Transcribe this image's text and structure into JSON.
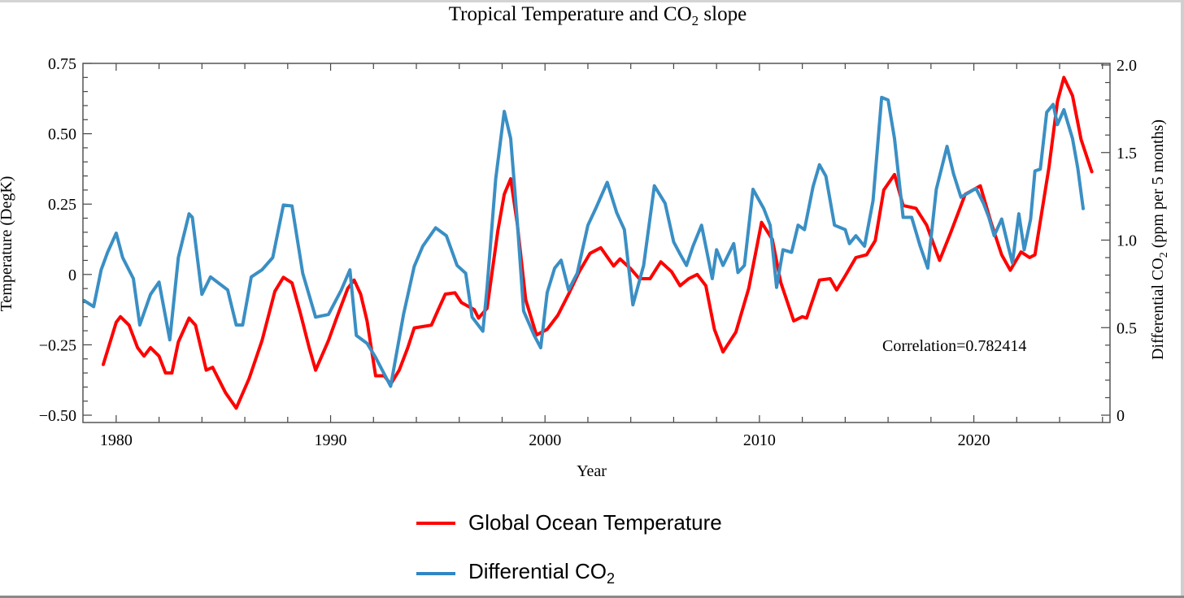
{
  "chart_data": {
    "type": "line",
    "title": {
      "main": "Tropical Temperature and CO",
      "sub": "2",
      "tail": " slope"
    },
    "xlabel": "Year",
    "ylabel_left": "Temperature (DegK)",
    "ylabel_right": {
      "main": "Differential CO",
      "sub": "2",
      "tail": " (ppm per 5 months)"
    },
    "xlim": [
      1978.45,
      2026.35
    ],
    "ylim_left": [
      -0.5,
      0.75
    ],
    "ylim_right": [
      0,
      2.0
    ],
    "x_ticks": [
      "1980",
      "1990",
      "2000",
      "2010",
      "2020"
    ],
    "y_left_ticks": [
      "0.75",
      "0.50",
      "0.25",
      "0",
      "−0.25",
      "−0.50"
    ],
    "y_left_tick_values": [
      0.75,
      0.5,
      0.25,
      0,
      -0.25,
      -0.5
    ],
    "y_right_ticks": [
      "2.0",
      "1.5",
      "1.0",
      "0.5",
      "0"
    ],
    "y_right_tick_values": [
      2.0,
      1.5,
      1.0,
      0.5,
      0
    ],
    "annotation": "Correlation=0.782414",
    "legend_position": "bottom",
    "series": [
      {
        "name": "Global Ocean Temperature",
        "axis": "left",
        "color": "#ff0000",
        "x": [
          1979.4,
          1980.0,
          1980.2,
          1980.6,
          1981.0,
          1981.3,
          1981.6,
          1982.0,
          1982.3,
          1982.6,
          1982.9,
          1983.4,
          1983.7,
          1984.2,
          1984.5,
          1985.1,
          1985.6,
          1986.2,
          1986.8,
          1987.4,
          1987.8,
          1988.2,
          1988.6,
          1989.0,
          1989.3,
          1989.9,
          1990.3,
          1990.8,
          1991.1,
          1991.4,
          1991.7,
          1992.1,
          1992.5,
          1992.8,
          1993.2,
          1993.6,
          1993.9,
          1994.7,
          1995.05,
          1995.35,
          1995.8,
          1996.1,
          1996.7,
          1996.9,
          1997.3,
          1997.8,
          1998.1,
          1998.4,
          1998.7,
          1999.1,
          1999.6,
          2000.1,
          2000.6,
          2001.1,
          2001.6,
          2002.1,
          2002.6,
          2003.2,
          2003.5,
          2004.0,
          2004.4,
          2004.9,
          2005.4,
          2005.9,
          2006.3,
          2006.7,
          2007.1,
          2007.5,
          2007.9,
          2008.3,
          2008.9,
          2009.5,
          2010.1,
          2010.6,
          2011.0,
          2011.6,
          2012.0,
          2012.2,
          2012.8,
          2013.3,
          2013.6,
          2014.0,
          2014.5,
          2015.0,
          2015.4,
          2015.8,
          2016.3,
          2016.7,
          2017.3,
          2017.8,
          2018.4,
          2018.9,
          2019.6,
          2020.3,
          2020.8,
          2021.3,
          2021.7,
          2022.2,
          2022.6,
          2022.85,
          2023.5,
          2023.9,
          2024.2,
          2024.6,
          2025.0,
          2025.5
        ],
        "y": [
          -0.32,
          -0.17,
          -0.15,
          -0.18,
          -0.26,
          -0.29,
          -0.26,
          -0.29,
          -0.35,
          -0.35,
          -0.24,
          -0.155,
          -0.18,
          -0.34,
          -0.33,
          -0.42,
          -0.475,
          -0.37,
          -0.235,
          -0.06,
          -0.01,
          -0.03,
          -0.14,
          -0.26,
          -0.34,
          -0.235,
          -0.15,
          -0.05,
          -0.02,
          -0.07,
          -0.165,
          -0.36,
          -0.36,
          -0.39,
          -0.34,
          -0.26,
          -0.19,
          -0.18,
          -0.12,
          -0.07,
          -0.065,
          -0.1,
          -0.125,
          -0.155,
          -0.12,
          0.155,
          0.285,
          0.34,
          0.185,
          -0.09,
          -0.215,
          -0.195,
          -0.145,
          -0.07,
          0.01,
          0.075,
          0.095,
          0.03,
          0.055,
          0.02,
          -0.015,
          -0.015,
          0.045,
          0.01,
          -0.04,
          -0.015,
          0.0,
          -0.04,
          -0.195,
          -0.275,
          -0.205,
          -0.05,
          0.185,
          0.125,
          -0.03,
          -0.165,
          -0.15,
          -0.155,
          -0.02,
          -0.015,
          -0.055,
          -0.005,
          0.06,
          0.07,
          0.12,
          0.3,
          0.355,
          0.245,
          0.235,
          0.175,
          0.05,
          0.145,
          0.285,
          0.315,
          0.185,
          0.07,
          0.015,
          0.08,
          0.06,
          0.07,
          0.38,
          0.615,
          0.7,
          0.635,
          0.48,
          0.365
        ]
      },
      {
        "name": "Differential CO",
        "name_sub": "2",
        "axis": "right",
        "color": "#3a8fc4",
        "x": [
          1978.5,
          1978.95,
          1979.3,
          1979.6,
          1980.0,
          1980.3,
          1980.8,
          1981.1,
          1981.6,
          1982.0,
          1982.5,
          1982.9,
          1983.4,
          1983.55,
          1984.0,
          1984.4,
          1985.2,
          1985.6,
          1985.9,
          1986.3,
          1986.8,
          1987.3,
          1987.8,
          1988.2,
          1988.7,
          1989.3,
          1989.9,
          1990.5,
          1990.9,
          1991.2,
          1991.7,
          1992.1,
          1992.8,
          1993.4,
          1993.9,
          1994.3,
          1994.9,
          1995.4,
          1995.9,
          1996.3,
          1996.6,
          1997.1,
          1997.3,
          1997.7,
          1998.1,
          1998.4,
          1998.7,
          1999.0,
          1999.5,
          1999.8,
          2000.1,
          2000.45,
          2000.75,
          2001.1,
          2001.5,
          2002.0,
          2002.4,
          2002.9,
          2003.35,
          2003.7,
          2004.1,
          2004.6,
          2005.1,
          2005.6,
          2006.0,
          2006.3,
          2006.6,
          2006.9,
          2007.3,
          2007.8,
          2008.0,
          2008.3,
          2008.8,
          2009.0,
          2009.3,
          2009.7,
          2010.2,
          2010.5,
          2010.8,
          2011.1,
          2011.5,
          2011.8,
          2012.1,
          2012.5,
          2012.8,
          2013.1,
          2013.5,
          2014.0,
          2014.2,
          2014.5,
          2014.9,
          2015.3,
          2015.7,
          2016.0,
          2016.3,
          2016.7,
          2017.1,
          2017.5,
          2017.85,
          2018.25,
          2018.75,
          2019.05,
          2019.4,
          2020.1,
          2020.45,
          2020.7,
          2020.95,
          2021.3,
          2021.6,
          2021.8,
          2022.1,
          2022.35,
          2022.65,
          2022.85,
          2023.1,
          2023.4,
          2023.7,
          2023.9,
          2024.2,
          2024.6,
          2024.85,
          2025.1
        ],
        "y": [
          0.655,
          0.62,
          0.83,
          0.93,
          1.04,
          0.9,
          0.78,
          0.515,
          0.69,
          0.76,
          0.43,
          0.9,
          1.15,
          1.13,
          0.69,
          0.79,
          0.715,
          0.515,
          0.515,
          0.79,
          0.83,
          0.9,
          1.2,
          1.195,
          0.81,
          0.56,
          0.575,
          0.715,
          0.83,
          0.455,
          0.41,
          0.33,
          0.165,
          0.575,
          0.85,
          0.965,
          1.07,
          1.025,
          0.855,
          0.81,
          0.56,
          0.48,
          0.73,
          1.35,
          1.735,
          1.58,
          1.12,
          0.595,
          0.455,
          0.385,
          0.7,
          0.84,
          0.885,
          0.715,
          0.81,
          1.085,
          1.19,
          1.33,
          1.155,
          1.06,
          0.63,
          0.855,
          1.31,
          1.21,
          0.99,
          0.92,
          0.855,
          0.965,
          1.085,
          0.78,
          0.945,
          0.855,
          0.98,
          0.815,
          0.855,
          1.29,
          1.18,
          1.085,
          0.73,
          0.945,
          0.93,
          1.085,
          1.06,
          1.305,
          1.43,
          1.365,
          1.085,
          1.06,
          0.98,
          1.025,
          0.965,
          1.225,
          1.815,
          1.8,
          1.58,
          1.13,
          1.13,
          0.965,
          0.84,
          1.29,
          1.535,
          1.38,
          1.245,
          1.295,
          1.21,
          1.13,
          1.025,
          1.12,
          0.965,
          0.87,
          1.15,
          0.945,
          1.12,
          1.395,
          1.405,
          1.73,
          1.775,
          1.66,
          1.745,
          1.58,
          1.41,
          1.18
        ]
      }
    ]
  }
}
